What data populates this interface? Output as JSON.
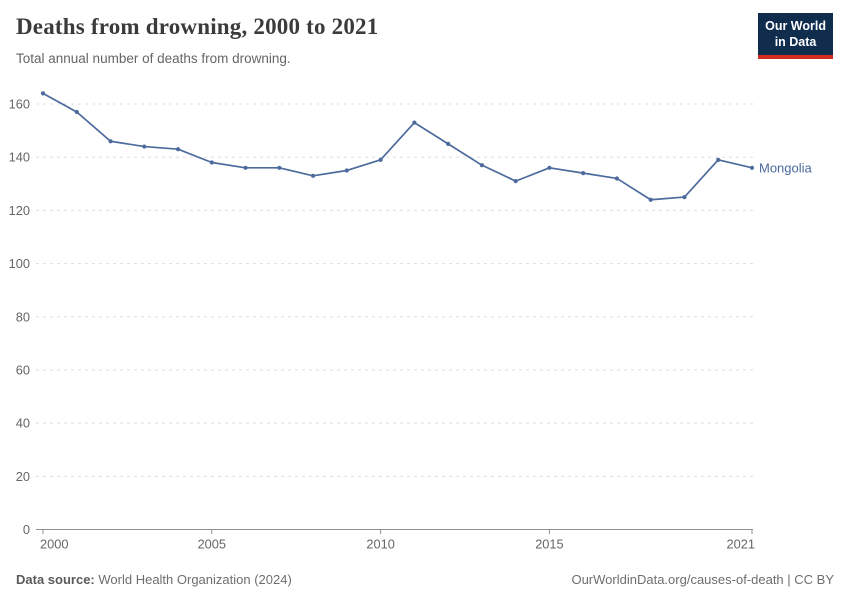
{
  "header": {
    "title": "Deaths from drowning, 2000 to 2021",
    "subtitle": "Total annual number of deaths from drowning.",
    "logo": {
      "line1": "Our World",
      "line2": "in Data",
      "bg": "#102d4e",
      "accent": "#d42b21"
    }
  },
  "chart_data": {
    "type": "line",
    "title": "Deaths from drowning, 2000 to 2021",
    "xlabel": "",
    "ylabel": "",
    "x": [
      2000,
      2001,
      2002,
      2003,
      2004,
      2005,
      2006,
      2007,
      2008,
      2009,
      2010,
      2011,
      2012,
      2013,
      2014,
      2015,
      2016,
      2017,
      2018,
      2019,
      2020,
      2021
    ],
    "series": [
      {
        "name": "Mongolia",
        "color": "#4c6a9c",
        "values": [
          164,
          157,
          146,
          144,
          143,
          138,
          136,
          136,
          133,
          135,
          139,
          153,
          145,
          137,
          131,
          136,
          134,
          132,
          124,
          125,
          139,
          136
        ]
      }
    ],
    "ylim": [
      0,
      160
    ],
    "yticks": [
      0,
      20,
      40,
      60,
      80,
      100,
      120,
      140,
      160
    ],
    "xticks": [
      2000,
      2005,
      2010,
      2015,
      2021
    ],
    "grid": "horizontal-dashed",
    "grid_color": "#dddddd",
    "axis_color": "#8f8f8f",
    "tick_label_color": "#666666",
    "legend": "inline-end-label"
  },
  "footer": {
    "source_label": "Data source:",
    "source_value": "World Health Organization (2024)",
    "credit": "OurWorldinData.org/causes-of-death | CC BY"
  }
}
